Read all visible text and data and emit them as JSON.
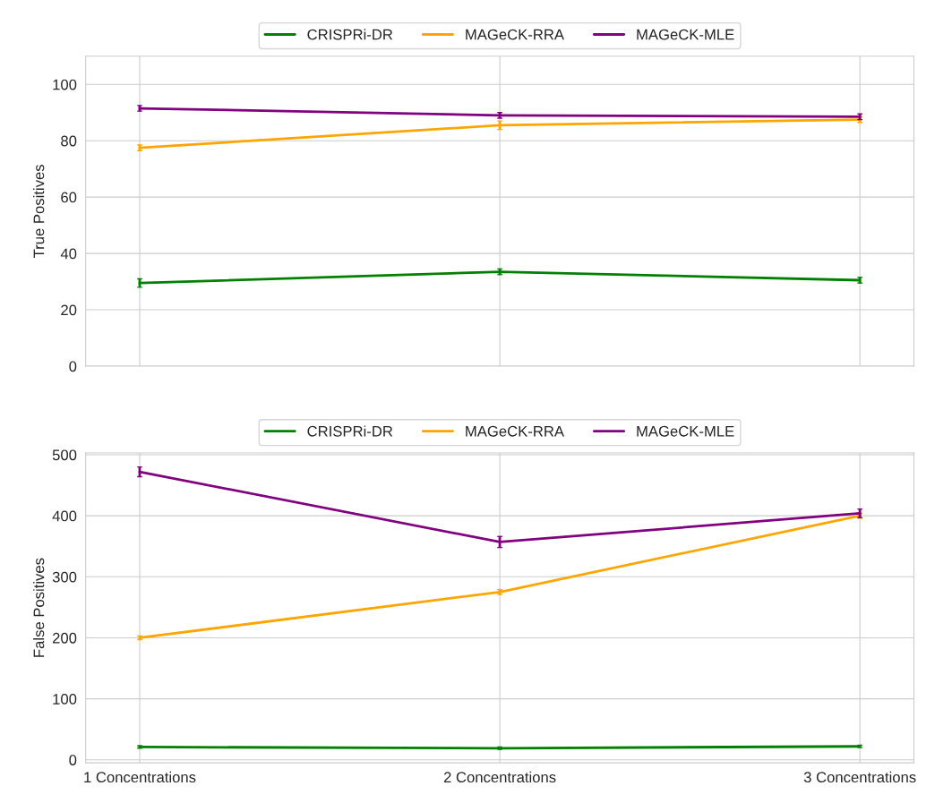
{
  "chart_data": [
    {
      "type": "line",
      "categories": [
        null,
        null,
        null
      ],
      "ylabel": "True Positives",
      "ylim": [
        0,
        110
      ],
      "yticks": [
        0,
        20,
        40,
        60,
        80,
        100
      ],
      "grid": true,
      "legend": "top",
      "tick_labels": "y",
      "series": [
        {
          "name": "CRISPRi-DR",
          "color": "#008000",
          "values": [
            29.5,
            33.5,
            30.5
          ],
          "errors": [
            1.5,
            1,
            1
          ]
        },
        {
          "name": "MAGeCK-RRA",
          "color": "#ffa500",
          "values": [
            77.5,
            85.5,
            87.5
          ],
          "errors": [
            1,
            1.5,
            1
          ]
        },
        {
          "name": "MAGeCK-MLE",
          "color": "#800080",
          "values": [
            91.5,
            89,
            88.5
          ],
          "errors": [
            1,
            1,
            1
          ]
        }
      ]
    },
    {
      "type": "line",
      "categories": [
        "1 Concentrations",
        "2 Concentrations",
        "3 Concentrations"
      ],
      "ylabel": "False Positives",
      "ylim": [
        -5,
        503
      ],
      "yticks": [
        0,
        100,
        200,
        300,
        400,
        500
      ],
      "grid": true,
      "legend": "top",
      "series": [
        {
          "name": "CRISPRi-DR",
          "color": "#008000",
          "values": [
            21,
            19,
            22
          ],
          "errors": [
            2,
            2,
            2
          ]
        },
        {
          "name": "MAGeCK-RRA",
          "color": "#ffa500",
          "values": [
            200,
            275,
            400
          ],
          "errors": [
            3,
            4,
            4
          ]
        },
        {
          "name": "MAGeCK-MLE",
          "color": "#800080",
          "values": [
            472,
            357,
            404
          ],
          "errors": [
            8,
            9,
            7
          ]
        }
      ]
    }
  ]
}
